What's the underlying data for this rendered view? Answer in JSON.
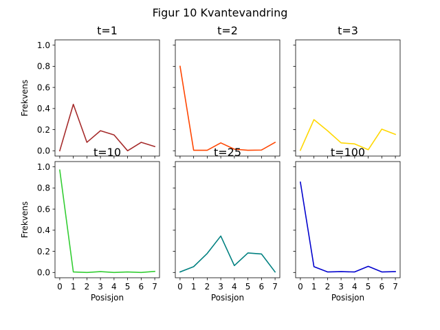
{
  "figure": {
    "title": "Figur 10 Kvantevandring"
  },
  "chart_data": [
    {
      "type": "line",
      "title": "t=1",
      "xlabel": "",
      "ylabel": "Frekvens",
      "x": [
        0,
        1,
        2,
        3,
        4,
        5,
        6,
        7
      ],
      "values": [
        0.0,
        0.44,
        0.08,
        0.19,
        0.15,
        0.0,
        0.08,
        0.04
      ],
      "color": "#a52a2a",
      "ylim": [
        -0.05,
        1.05
      ],
      "xlim": [
        -0.35,
        7.35
      ],
      "yticks": [
        "0.0",
        "0.2",
        "0.4",
        "0.6",
        "0.8",
        "1.0"
      ],
      "xticks": [
        "0",
        "1",
        "2",
        "3",
        "4",
        "5",
        "6",
        "7"
      ],
      "show_xtick_labels": false,
      "show_ytick_labels": true
    },
    {
      "type": "line",
      "title": "t=2",
      "xlabel": "",
      "ylabel": "",
      "x": [
        0,
        1,
        2,
        3,
        4,
        5,
        6,
        7
      ],
      "values": [
        0.8,
        0.005,
        0.005,
        0.075,
        0.015,
        0.005,
        0.007,
        0.08
      ],
      "color": "#ff4500",
      "ylim": [
        -0.05,
        1.05
      ],
      "xlim": [
        -0.35,
        7.35
      ],
      "yticks": [
        "0.0",
        "0.2",
        "0.4",
        "0.6",
        "0.8",
        "1.0"
      ],
      "xticks": [
        "0",
        "1",
        "2",
        "3",
        "4",
        "5",
        "6",
        "7"
      ],
      "show_xtick_labels": false,
      "show_ytick_labels": false
    },
    {
      "type": "line",
      "title": "t=3",
      "xlabel": "",
      "ylabel": "",
      "x": [
        0,
        1,
        2,
        3,
        4,
        5,
        6,
        7
      ],
      "values": [
        0.005,
        0.295,
        0.19,
        0.075,
        0.065,
        0.01,
        0.205,
        0.155
      ],
      "color": "#ffd700",
      "ylim": [
        -0.05,
        1.05
      ],
      "xlim": [
        -0.35,
        7.35
      ],
      "yticks": [
        "0.0",
        "0.2",
        "0.4",
        "0.6",
        "0.8",
        "1.0"
      ],
      "xticks": [
        "0",
        "1",
        "2",
        "3",
        "4",
        "5",
        "6",
        "7"
      ],
      "show_xtick_labels": false,
      "show_ytick_labels": false
    },
    {
      "type": "line",
      "title": "t=10",
      "xlabel": "Posisjon",
      "ylabel": "Frekvens",
      "x": [
        0,
        1,
        2,
        3,
        4,
        5,
        6,
        7
      ],
      "values": [
        0.97,
        0.005,
        0.0,
        0.008,
        0.0,
        0.005,
        0.0,
        0.01
      ],
      "color": "#32cd32",
      "ylim": [
        -0.05,
        1.05
      ],
      "xlim": [
        -0.35,
        7.35
      ],
      "yticks": [
        "0.0",
        "0.2",
        "0.4",
        "0.6",
        "0.8",
        "1.0"
      ],
      "xticks": [
        "0",
        "1",
        "2",
        "3",
        "4",
        "5",
        "6",
        "7"
      ],
      "show_xtick_labels": true,
      "show_ytick_labels": true
    },
    {
      "type": "line",
      "title": "t=25",
      "xlabel": "Posisjon",
      "ylabel": "",
      "x": [
        0,
        1,
        2,
        3,
        4,
        5,
        6,
        7
      ],
      "values": [
        0.005,
        0.055,
        0.18,
        0.345,
        0.065,
        0.185,
        0.175,
        0.005
      ],
      "color": "#008080",
      "ylim": [
        -0.05,
        1.05
      ],
      "xlim": [
        -0.35,
        7.35
      ],
      "yticks": [
        "0.0",
        "0.2",
        "0.4",
        "0.6",
        "0.8",
        "1.0"
      ],
      "xticks": [
        "0",
        "1",
        "2",
        "3",
        "4",
        "5",
        "6",
        "7"
      ],
      "show_xtick_labels": true,
      "show_ytick_labels": false
    },
    {
      "type": "line",
      "title": "t=100",
      "xlabel": "Posisjon",
      "ylabel": "",
      "x": [
        0,
        1,
        2,
        3,
        4,
        5,
        6,
        7
      ],
      "values": [
        0.855,
        0.055,
        0.005,
        0.008,
        0.005,
        0.058,
        0.005,
        0.008
      ],
      "color": "#0000cd",
      "ylim": [
        -0.05,
        1.05
      ],
      "xlim": [
        -0.35,
        7.35
      ],
      "yticks": [
        "0.0",
        "0.2",
        "0.4",
        "0.6",
        "0.8",
        "1.0"
      ],
      "xticks": [
        "0",
        "1",
        "2",
        "3",
        "4",
        "5",
        "6",
        "7"
      ],
      "show_xtick_labels": true,
      "show_ytick_labels": false
    }
  ]
}
